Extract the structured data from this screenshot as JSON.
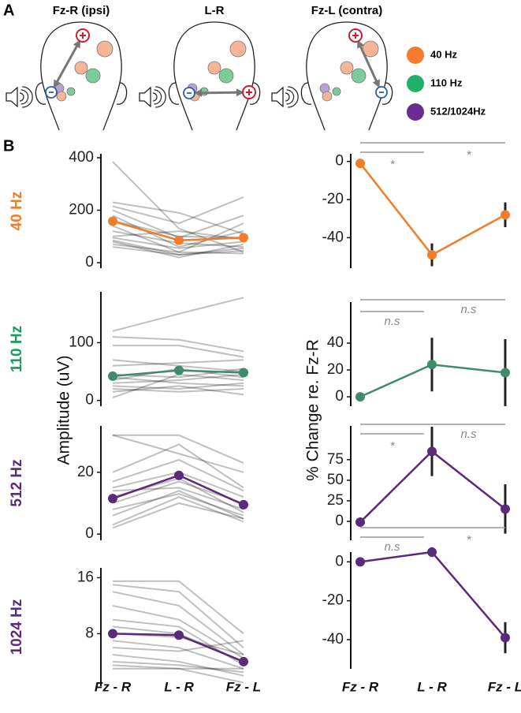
{
  "panel_labels": [
    "A",
    "B"
  ],
  "heads": [
    "Fz-R (ipsi)",
    "L-R",
    "Fz-L (contra)"
  ],
  "legend": [
    {
      "name": "40 Hz",
      "color": "#f47b30"
    },
    {
      "name": "110 Hz",
      "color": "#1fb06a"
    },
    {
      "name": "512/1024Hz",
      "color": "#6a2c91"
    }
  ],
  "ylabels": [
    "Amplitude (uV)",
    "% Change re. Fz-R"
  ],
  "chart_data": [
    {
      "type": "line",
      "title": "40 Hz",
      "title_color": "#f07c2c",
      "ylim": [
        -21,
        415
      ],
      "yticks": [
        0,
        200,
        400
      ],
      "line_opacity": 0.25,
      "series": [
        {
          "color": "#000000",
          "values": [
            385,
            130,
            40
          ]
        },
        {
          "color": "#000000",
          "values": [
            230,
            190,
            110
          ]
        },
        {
          "color": "#000000",
          "values": [
            215,
            150,
            250
          ]
        },
        {
          "color": "#000000",
          "values": [
            200,
            95,
            180
          ]
        },
        {
          "color": "#000000",
          "values": [
            180,
            60,
            120
          ]
        },
        {
          "color": "#000000",
          "values": [
            160,
            100,
            95
          ]
        },
        {
          "color": "#000000",
          "values": [
            140,
            40,
            150
          ]
        },
        {
          "color": "#000000",
          "values": [
            120,
            75,
            60
          ]
        },
        {
          "color": "#000000",
          "values": [
            95,
            55,
            80
          ]
        },
        {
          "color": "#000000",
          "values": [
            85,
            30,
            45
          ]
        },
        {
          "color": "#000000",
          "values": [
            80,
            20,
            70
          ]
        },
        {
          "color": "#000000",
          "values": [
            70,
            40,
            35
          ]
        },
        {
          "color": "#000000",
          "values": [
            60,
            30,
            55
          ]
        },
        {
          "color": "#000000",
          "values": [
            100,
            120,
            90
          ]
        },
        {
          "color": "#f07c2c",
          "values": [
            158,
            85,
            95
          ],
          "mean": true
        }
      ]
    },
    {
      "type": "errorbar",
      "ylim": [
        -56,
        4
      ],
      "yticks": [
        0,
        -20,
        -40
      ],
      "color": "#f07c2c",
      "values": [
        -1,
        -49,
        -28
      ],
      "errors": [
        null,
        6,
        6.5
      ],
      "annotations": [
        {
          "label": "*",
          "span": [
            0,
            1
          ]
        },
        {
          "label": "*",
          "span": [
            0,
            2
          ]
        }
      ]
    },
    {
      "type": "line",
      "title": "110 Hz",
      "title_color": "#1a9a5c",
      "ylim": [
        -10,
        188
      ],
      "yticks": [
        0,
        100
      ],
      "line_opacity": 0.25,
      "series": [
        {
          "color": "#000000",
          "values": [
            120,
            150,
            178
          ]
        },
        {
          "color": "#000000",
          "values": [
            110,
            105,
            85
          ]
        },
        {
          "color": "#000000",
          "values": [
            95,
            95,
            75
          ]
        },
        {
          "color": "#000000",
          "values": [
            70,
            60,
            50
          ]
        },
        {
          "color": "#000000",
          "values": [
            60,
            65,
            70
          ]
        },
        {
          "color": "#000000",
          "values": [
            45,
            40,
            55
          ]
        },
        {
          "color": "#000000",
          "values": [
            40,
            30,
            25
          ]
        },
        {
          "color": "#000000",
          "values": [
            30,
            35,
            45
          ]
        },
        {
          "color": "#000000",
          "values": [
            25,
            20,
            30
          ]
        },
        {
          "color": "#000000",
          "values": [
            20,
            15,
            20
          ]
        },
        {
          "color": "#000000",
          "values": [
            15,
            25,
            10
          ]
        },
        {
          "color": "#000000",
          "values": [
            5,
            45,
            35
          ]
        },
        {
          "color": "#000000",
          "values": [
            35,
            55,
            40
          ]
        },
        {
          "color": "#3f8c6c",
          "values": [
            42,
            52,
            48
          ],
          "mean": true
        }
      ]
    },
    {
      "type": "errorbar",
      "ylim": [
        -7,
        70.6
      ],
      "yticks": [
        0,
        20,
        40
      ],
      "color": "#3f8c6c",
      "values": [
        0,
        24,
        18
      ],
      "errors": [
        null,
        20,
        25
      ],
      "annotations": [
        {
          "label": "n.s",
          "span": [
            0,
            1
          ]
        },
        {
          "label": "n.s",
          "span": [
            0,
            2
          ]
        }
      ]
    },
    {
      "type": "line",
      "title": "512 Hz",
      "title_color": "#5b2a7a",
      "ylim": [
        -2,
        35
      ],
      "yticks": [
        0,
        20
      ],
      "line_opacity": 0.25,
      "series": [
        {
          "color": "#000000",
          "values": [
            32,
            32,
            23
          ]
        },
        {
          "color": "#000000",
          "values": [
            32,
            26,
            20
          ]
        },
        {
          "color": "#000000",
          "values": [
            20,
            29,
            15
          ]
        },
        {
          "color": "#000000",
          "values": [
            17,
            24,
            14
          ]
        },
        {
          "color": "#000000",
          "values": [
            15,
            20,
            12
          ]
        },
        {
          "color": "#000000",
          "values": [
            14,
            15,
            8
          ]
        },
        {
          "color": "#000000",
          "values": [
            12,
            18,
            7
          ]
        },
        {
          "color": "#000000",
          "values": [
            10,
            17,
            10
          ]
        },
        {
          "color": "#000000",
          "values": [
            8,
            13,
            6
          ]
        },
        {
          "color": "#000000",
          "values": [
            6,
            14,
            5
          ]
        },
        {
          "color": "#000000",
          "values": [
            3,
            12,
            4
          ]
        },
        {
          "color": "#000000",
          "values": [
            2,
            10,
            5
          ]
        },
        {
          "color": "#5b2a7a",
          "values": [
            11.5,
            19,
            9.5
          ],
          "mean": true
        }
      ]
    },
    {
      "type": "errorbar",
      "ylim": [
        -23,
        116
      ],
      "yticks": [
        0,
        25,
        50,
        75
      ],
      "color": "#5b2a7a",
      "values": [
        -1,
        85,
        15
      ],
      "errors": [
        null,
        30,
        30
      ],
      "annotations": [
        {
          "label": "*",
          "span": [
            0,
            1
          ]
        },
        {
          "label": "n.s",
          "span": [
            0,
            2
          ]
        }
      ]
    },
    {
      "type": "line",
      "title": "1024 Hz",
      "title_color": "#5b2a7a",
      "ylim": [
        0.5,
        17.4
      ],
      "yticks": [
        8,
        16
      ],
      "line_opacity": 0.25,
      "categories": [
        "Fz - R",
        "L - R",
        "Fz - L"
      ],
      "series": [
        {
          "color": "#000000",
          "values": [
            15.5,
            15.5,
            8
          ]
        },
        {
          "color": "#000000",
          "values": [
            15,
            14,
            6
          ]
        },
        {
          "color": "#000000",
          "values": [
            14,
            12,
            5
          ]
        },
        {
          "color": "#000000",
          "values": [
            12,
            10,
            4.5
          ]
        },
        {
          "color": "#000000",
          "values": [
            10,
            9,
            3.5
          ]
        },
        {
          "color": "#000000",
          "values": [
            9,
            8,
            4
          ]
        },
        {
          "color": "#000000",
          "values": [
            8,
            7.5,
            5
          ]
        },
        {
          "color": "#000000",
          "values": [
            7,
            6,
            3
          ]
        },
        {
          "color": "#000000",
          "values": [
            6,
            5.5,
            7
          ]
        },
        {
          "color": "#000000",
          "values": [
            5,
            4,
            2
          ]
        },
        {
          "color": "#000000",
          "values": [
            4,
            3.5,
            2.5
          ]
        },
        {
          "color": "#000000",
          "values": [
            3.5,
            3,
            1
          ]
        },
        {
          "color": "#000000",
          "values": [
            3,
            3,
            3
          ]
        },
        {
          "color": "#5b2a7a",
          "values": [
            8,
            7.8,
            4
          ],
          "mean": true
        }
      ]
    },
    {
      "type": "errorbar",
      "ylim": [
        -55,
        5
      ],
      "yticks": [
        0,
        -20,
        -40
      ],
      "color": "#5b2a7a",
      "categories": [
        "Fz - R",
        "L - R",
        "Fz - L"
      ],
      "values": [
        0,
        5,
        -39
      ],
      "errors": [
        null,
        2.5,
        8
      ],
      "annotations": [
        {
          "label": "n.s",
          "span": [
            0,
            1
          ]
        },
        {
          "label": "*",
          "span": [
            0,
            2
          ]
        }
      ]
    }
  ]
}
